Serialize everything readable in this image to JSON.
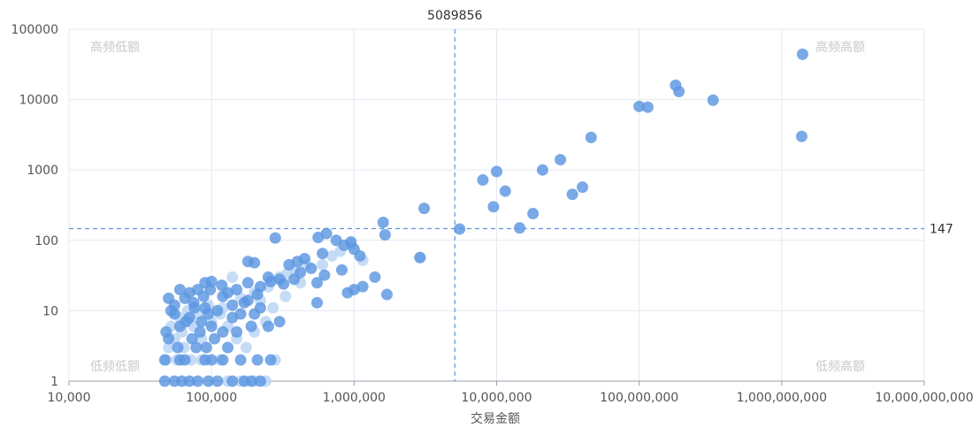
{
  "chart_data": {
    "type": "scatter",
    "xlabel": "交易金额",
    "ylabel": "",
    "x_scale": "log",
    "y_scale": "log",
    "xlim": [
      10000,
      10000000000
    ],
    "ylim": [
      1,
      100000
    ],
    "x_ticks": [
      "10,000",
      "100,000",
      "1,000,000",
      "10,000,000",
      "100,000,000",
      "1,000,000,000",
      "10,000,000,000"
    ],
    "y_ticks": [
      "1",
      "10",
      "100",
      "1000",
      "10000",
      "100000"
    ],
    "grid": true,
    "reference_lines": {
      "x": {
        "value": 5089856,
        "label": "5089856"
      },
      "y": {
        "value": 147,
        "label": "147"
      }
    },
    "quadrants": {
      "top_left": "高频低额",
      "top_right": "高频高额",
      "bottom_left": "低频低额",
      "bottom_right": "低频高额"
    },
    "colors": {
      "point_dark": "#5b96e0",
      "point_light": "#bcd6f4",
      "ref_line": "#5b96e0",
      "grid": "#e3e8f2",
      "axis": "#9aa0aa"
    },
    "points": [
      [
        1400000000,
        44000
      ],
      [
        180000000,
        16000
      ],
      [
        190000000,
        13000
      ],
      [
        330000000,
        9800
      ],
      [
        100000000,
        8000
      ],
      [
        115000000,
        7800
      ],
      [
        1380000000,
        3000
      ],
      [
        46000000,
        2900
      ],
      [
        28000000,
        1400
      ],
      [
        21000000,
        1000
      ],
      [
        10000000,
        950
      ],
      [
        8000000,
        720
      ],
      [
        11500000,
        500
      ],
      [
        40000000,
        570
      ],
      [
        34000000,
        450
      ],
      [
        9500000,
        300
      ],
      [
        18000000,
        240
      ],
      [
        14500000,
        150
      ],
      [
        5500000,
        145
      ],
      [
        3100000,
        285
      ],
      [
        1600000,
        180
      ],
      [
        1650000,
        120
      ],
      [
        2900000,
        57
      ],
      [
        640000,
        125
      ],
      [
        560000,
        110
      ],
      [
        280000,
        108
      ],
      [
        750000,
        100
      ],
      [
        950000,
        95
      ],
      [
        850000,
        85
      ],
      [
        1000000,
        75
      ],
      [
        1100000,
        60
      ],
      [
        600000,
        65
      ],
      [
        450000,
        55
      ],
      [
        400000,
        50
      ],
      [
        350000,
        45
      ],
      [
        500000,
        40
      ],
      [
        820000,
        38
      ],
      [
        620000,
        32
      ],
      [
        1400000,
        30
      ],
      [
        550000,
        25
      ],
      [
        1150000,
        22
      ],
      [
        1000000,
        20
      ],
      [
        900000,
        18
      ],
      [
        1700000,
        17
      ],
      [
        550000,
        13
      ],
      [
        300000,
        28
      ],
      [
        250000,
        30
      ],
      [
        200000,
        48
      ],
      [
        180000,
        50
      ],
      [
        180000,
        25
      ],
      [
        220000,
        22
      ],
      [
        150000,
        20
      ],
      [
        130000,
        18
      ],
      [
        120000,
        16
      ],
      [
        100000,
        26
      ],
      [
        90000,
        25
      ],
      [
        80000,
        20
      ],
      [
        70000,
        18
      ],
      [
        60000,
        20
      ],
      [
        65000,
        15
      ],
      [
        50000,
        15
      ],
      [
        55000,
        12
      ],
      [
        75000,
        13
      ],
      [
        90000,
        11
      ],
      [
        110000,
        10
      ],
      [
        140000,
        12
      ],
      [
        160000,
        9
      ],
      [
        200000,
        9
      ],
      [
        220000,
        11
      ],
      [
        300000,
        7
      ],
      [
        250000,
        6
      ],
      [
        190000,
        6
      ],
      [
        150000,
        5
      ],
      [
        120000,
        5
      ],
      [
        100000,
        6
      ],
      [
        85000,
        7
      ],
      [
        70000,
        8
      ],
      [
        60000,
        6
      ],
      [
        55000,
        9
      ],
      [
        52000,
        10
      ],
      [
        48000,
        5
      ],
      [
        50000,
        4
      ],
      [
        58000,
        3
      ],
      [
        65000,
        2
      ],
      [
        78000,
        3
      ],
      [
        92000,
        3
      ],
      [
        105000,
        4
      ],
      [
        130000,
        3
      ],
      [
        160000,
        2
      ],
      [
        210000,
        2
      ],
      [
        260000,
        2
      ],
      [
        47000,
        2
      ],
      [
        47000,
        1
      ],
      [
        55000,
        1
      ],
      [
        62000,
        1
      ],
      [
        70000,
        1
      ],
      [
        80000,
        1
      ],
      [
        95000,
        1
      ],
      [
        110000,
        1
      ],
      [
        140000,
        1
      ],
      [
        170000,
        1
      ],
      [
        190000,
        1
      ],
      [
        220000,
        1
      ],
      [
        120000,
        2
      ],
      [
        100000,
        2
      ],
      [
        90000,
        2
      ],
      [
        60000,
        2
      ],
      [
        140000,
        8
      ],
      [
        170000,
        13
      ],
      [
        260000,
        26
      ],
      [
        320000,
        24
      ],
      [
        420000,
        35
      ],
      [
        380000,
        28
      ],
      [
        210000,
        17
      ],
      [
        180000,
        14
      ],
      [
        95000,
        9
      ],
      [
        83000,
        5
      ],
      [
        73000,
        4
      ],
      [
        66000,
        7
      ],
      [
        76000,
        11
      ],
      [
        88000,
        16
      ],
      [
        98000,
        20
      ],
      [
        118000,
        23
      ]
    ],
    "light_points": [
      [
        2900000,
        57
      ],
      [
        1150000,
        52
      ],
      [
        700000,
        60
      ],
      [
        460000,
        45
      ],
      [
        380000,
        38
      ],
      [
        300000,
        30
      ],
      [
        250000,
        22
      ],
      [
        200000,
        18
      ],
      [
        160000,
        15
      ],
      [
        140000,
        30
      ],
      [
        120000,
        11
      ],
      [
        95000,
        12
      ],
      [
        80000,
        9
      ],
      [
        70000,
        7
      ],
      [
        62000,
        5
      ],
      [
        55000,
        4
      ],
      [
        50000,
        3
      ],
      [
        48000,
        2
      ],
      [
        52000,
        6
      ],
      [
        60000,
        8
      ],
      [
        68000,
        10
      ],
      [
        75000,
        6
      ],
      [
        85000,
        4
      ],
      [
        100000,
        7
      ],
      [
        115000,
        9
      ],
      [
        130000,
        6
      ],
      [
        150000,
        4
      ],
      [
        175000,
        3
      ],
      [
        200000,
        5
      ],
      [
        240000,
        7
      ],
      [
        160000,
        1
      ],
      [
        200000,
        1
      ],
      [
        240000,
        1
      ],
      [
        280000,
        2
      ],
      [
        130000,
        1
      ],
      [
        115000,
        2
      ],
      [
        85000,
        2
      ],
      [
        72000,
        2
      ],
      [
        64000,
        3
      ],
      [
        57000,
        2
      ],
      [
        220000,
        14
      ],
      [
        270000,
        11
      ],
      [
        330000,
        16
      ],
      [
        420000,
        25
      ],
      [
        600000,
        45
      ],
      [
        800000,
        70
      ],
      [
        950000,
        88
      ],
      [
        340000,
        34
      ]
    ]
  }
}
